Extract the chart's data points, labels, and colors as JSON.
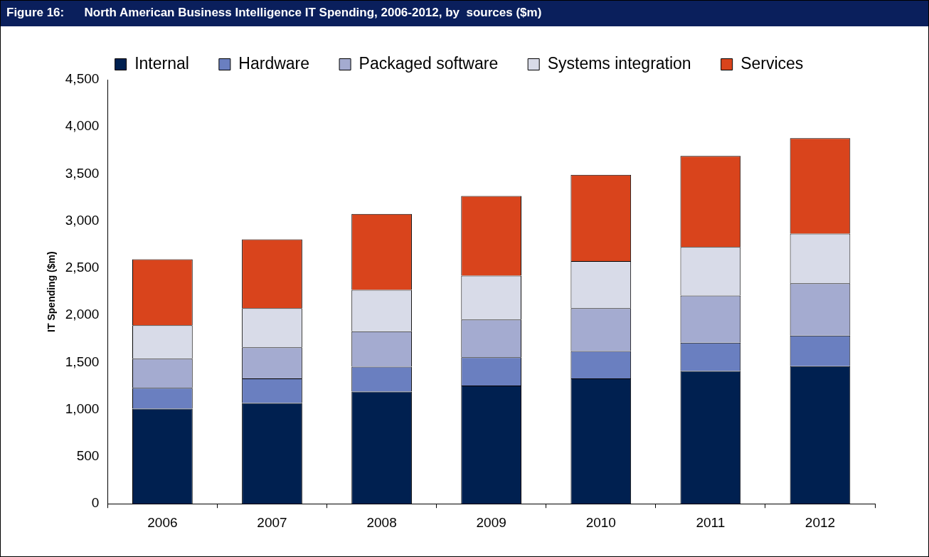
{
  "chart_data": {
    "type": "bar",
    "title": "Figure 16:      North American Business Intelligence IT Spending, 2006-2012, by  sources ($m)",
    "ylabel": "IT Spending ($m)",
    "categories": [
      "2006",
      "2007",
      "2008",
      "2009",
      "2010",
      "2011",
      "2012"
    ],
    "stacked": true,
    "legend": "top",
    "grid": false,
    "series": [
      {
        "name": "Internal",
        "color": "#002050",
        "values": [
          1010,
          1070,
          1190,
          1255,
          1330,
          1410,
          1460
        ]
      },
      {
        "name": "Hardware",
        "color": "#6a7fc0",
        "values": [
          220,
          260,
          265,
          300,
          290,
          300,
          325
        ]
      },
      {
        "name": "Packaged software",
        "color": "#a4abd0",
        "values": [
          310,
          330,
          375,
          400,
          455,
          500,
          555
        ]
      },
      {
        "name": "Systems integration",
        "color": "#d8dbe8",
        "values": [
          355,
          415,
          440,
          465,
          500,
          515,
          525
        ]
      },
      {
        "name": "Services",
        "color": "#d9441c",
        "values": [
          700,
          730,
          805,
          845,
          915,
          965,
          1015
        ]
      }
    ],
    "ylim": [
      0,
      4500
    ],
    "yticks": [
      0,
      {
        "value": 500,
        "label": "500"
      },
      {
        "value": 1000,
        "label": "1,000"
      },
      {
        "value": 1500,
        "label": "1,500"
      },
      {
        "value": 2000,
        "label": "2,000"
      },
      {
        "value": 2500,
        "label": "2,500"
      },
      {
        "value": 3000,
        "label": "3,000"
      },
      {
        "value": 3500,
        "label": "3,500"
      },
      {
        "value": 4000,
        "label": "4,000"
      },
      {
        "value": 4500,
        "label": "4,500"
      }
    ]
  }
}
